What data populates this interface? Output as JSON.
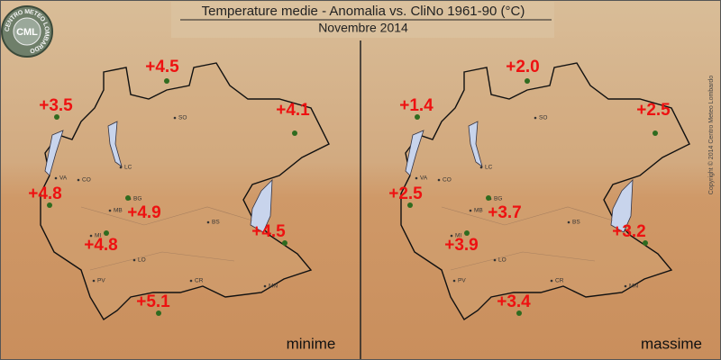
{
  "header": {
    "title": "Temperature medie - Anomalia vs. CliNo 1961-90 (°C)",
    "subtitle": "Novembre 2014"
  },
  "logo": {
    "text": "CML",
    "ring": "CENTRO METEO LOMBARDO"
  },
  "copyright": "Copyright © 2014 Centro Meteo Lombardo",
  "cities": [
    "SO",
    "LC",
    "CO",
    "VA",
    "BG",
    "MB",
    "BS",
    "MI",
    "LO",
    "CR",
    "PV",
    "MN"
  ],
  "panels": [
    {
      "label": "minime",
      "anomalies": [
        "+4.5",
        "+3.5",
        "+4.1",
        "+4.8",
        "+4.9",
        "+4.5",
        "+4.8",
        "+5.1"
      ]
    },
    {
      "label": "massime",
      "anomalies": [
        "+2.0",
        "+1.4",
        "+2.5",
        "+2.5",
        "+3.7",
        "+3.2",
        "+3.9",
        "+3.4"
      ]
    }
  ]
}
